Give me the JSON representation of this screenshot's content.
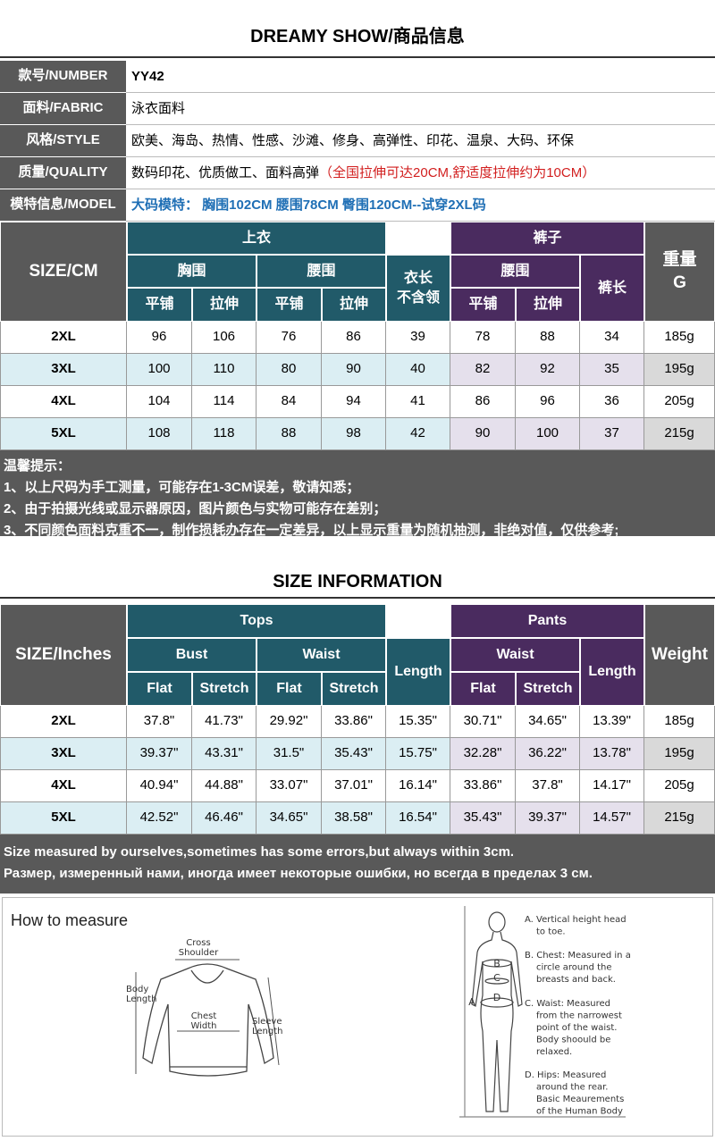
{
  "header": {
    "title": "DREAMY SHOW/商品信息"
  },
  "info": [
    {
      "label": "款号/NUMBER",
      "value": "YY42"
    },
    {
      "label": "面料/FABRIC",
      "value": "泳衣面料"
    },
    {
      "label": "风格/STYLE",
      "value": "欧美、海岛、热情、性感、沙滩、修身、高弹性、印花、温泉、大码、环保"
    },
    {
      "label": "质量/QUALITY",
      "value": "数码印花、优质做工、面料高弹",
      "note": "（全国拉伸可达20CM,舒适度拉伸约为10CM）"
    },
    {
      "label": "模特信息/MODEL",
      "value": "大码模特： 胸围102CM 腰围78CM 臀围120CM--试穿2XL码"
    }
  ],
  "cm_table": {
    "header": {
      "size": "SIZE/CM",
      "tops": "上衣",
      "bust": "胸围",
      "waist": "腰围",
      "length": [
        "衣长",
        "不含领"
      ],
      "pants": "裤子",
      "pants_waist": "腰围",
      "pants_length": "裤长",
      "weight": [
        "重量",
        "G"
      ],
      "sub": [
        "平铺",
        "拉伸",
        "平铺",
        "拉伸",
        "平铺",
        "拉伸"
      ]
    },
    "rows": [
      [
        "2XL",
        96,
        106,
        76,
        86,
        39,
        78,
        88,
        34,
        "185g"
      ],
      [
        "3XL",
        100,
        110,
        80,
        90,
        40,
        82,
        92,
        35,
        "195g"
      ],
      [
        "4XL",
        104,
        114,
        84,
        94,
        41,
        86,
        96,
        36,
        "205g"
      ],
      [
        "5XL",
        108,
        118,
        88,
        98,
        42,
        90,
        100,
        37,
        "215g"
      ]
    ]
  },
  "notes_cn": [
    "温馨提示：",
    "1、以上尺码为手工测量，可能存在1-3CM误差，敬请知悉；",
    "2、由于拍摄光线或显示器原因，图片颜色与实物可能存在差别；",
    "3、不同颜色面料克重不一，制作损耗办存在一定差异，以上显示重量为随机抽测，非绝对值，仅供参考;"
  ],
  "section2": {
    "title": "SIZE INFORMATION"
  },
  "inch_table": {
    "header": {
      "size": "SIZE/Inches",
      "tops": "Tops",
      "bust": "Bust",
      "waist": "Waist",
      "length": "Length",
      "pants": "Pants",
      "pants_waist": "Waist",
      "pants_length": "Length",
      "weight": "Weight",
      "sub": [
        "Flat",
        "Stretch",
        "Flat",
        "Stretch",
        "Flat",
        "Stretch"
      ]
    },
    "rows": [
      [
        "2XL",
        "37.8\"",
        "41.73\"",
        "29.92\"",
        "33.86\"",
        "15.35\"",
        "30.71\"",
        "34.65\"",
        "13.39\"",
        "185g"
      ],
      [
        "3XL",
        "39.37\"",
        "43.31\"",
        "31.5\"",
        "35.43\"",
        "15.75\"",
        "32.28\"",
        "36.22\"",
        "13.78\"",
        "195g"
      ],
      [
        "4XL",
        "40.94\"",
        "44.88\"",
        "33.07\"",
        "37.01\"",
        "16.14\"",
        "33.86\"",
        "37.8\"",
        "14.17\"",
        "205g"
      ],
      [
        "5XL",
        "42.52\"",
        "46.46\"",
        "34.65\"",
        "38.58\"",
        "16.54\"",
        "35.43\"",
        "39.37\"",
        "14.57\"",
        "215g"
      ]
    ]
  },
  "notes_en": [
    "Size measured by ourselves,sometimes has some errors,but always within 3cm.",
    "Размер, измеренный нами, иногда имеет некоторые ошибки, но всегда в пределах 3 см."
  ],
  "measure": {
    "title": "How to measure",
    "garment_labels": {
      "cross_shoulder": [
        "Cross",
        "Shoulder"
      ],
      "body_length": [
        "Body",
        "Length"
      ],
      "chest_width": [
        "Chest",
        "Width"
      ],
      "sleeve_length": [
        "Sleeve",
        "Length"
      ]
    },
    "figure_labels": [
      "A",
      "B",
      "C",
      "D"
    ],
    "items": [
      [
        "A. Vertical height head",
        "to toe."
      ],
      [
        "B. Chest: Measured in a",
        "circle around the",
        "breasts and back."
      ],
      [
        "C. Waist: Measured",
        "from the narrowest",
        "point of the waist.",
        "Body shoould be",
        "relaxed."
      ],
      [
        "D. Hips: Measured",
        "around the rear.",
        "Basic Meaurements",
        "of the Human Body"
      ]
    ]
  }
}
